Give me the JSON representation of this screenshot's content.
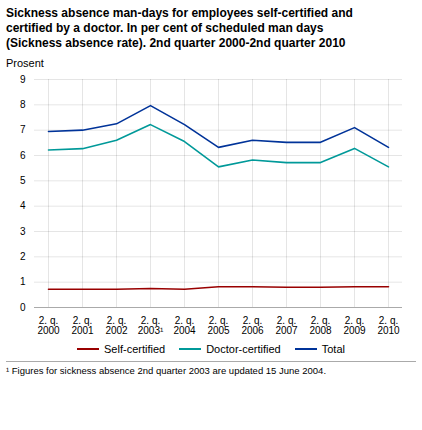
{
  "chart_data": {
    "type": "line",
    "title": "Sickness absence man-days for employees self-certified and\ncertified by a doctor. In per cent of scheduled man days\n(Sickness absence rate). 2nd quarter 2000-2nd quarter 2010",
    "y_label": "Prosent",
    "categories": [
      "2. q.\n2000",
      "2. q.\n2001",
      "2. q.\n2002",
      "2. q.\n2003¹",
      "2. q.\n2004",
      "2. q.\n2005",
      "2. q.\n2006",
      "2. q.\n2007",
      "2. q.\n2008",
      "2. q.\n2009",
      "2. q.\n2010"
    ],
    "series": [
      {
        "name": "Self-certified",
        "color": "#990000",
        "values": [
          0.72,
          0.72,
          0.72,
          0.75,
          0.72,
          0.82,
          0.82,
          0.8,
          0.8,
          0.82,
          0.82
        ]
      },
      {
        "name": "Doctor-certified",
        "color": "#009999",
        "values": [
          6.22,
          6.27,
          6.6,
          7.22,
          6.55,
          5.55,
          5.82,
          5.72,
          5.72,
          6.28,
          5.55
        ]
      },
      {
        "name": "Total",
        "color": "#003399",
        "values": [
          6.95,
          7.0,
          7.25,
          7.97,
          7.22,
          6.32,
          6.6,
          6.52,
          6.52,
          7.1,
          6.32
        ]
      }
    ],
    "ylim": [
      0,
      9
    ],
    "yticks": [
      0,
      1,
      2,
      3,
      4,
      5,
      6,
      7,
      8,
      9
    ],
    "grid": true,
    "legend": "bottom",
    "footnote": "¹ Figures for sickness absence 2nd quarter 2003 are updated 15 June 2004."
  }
}
